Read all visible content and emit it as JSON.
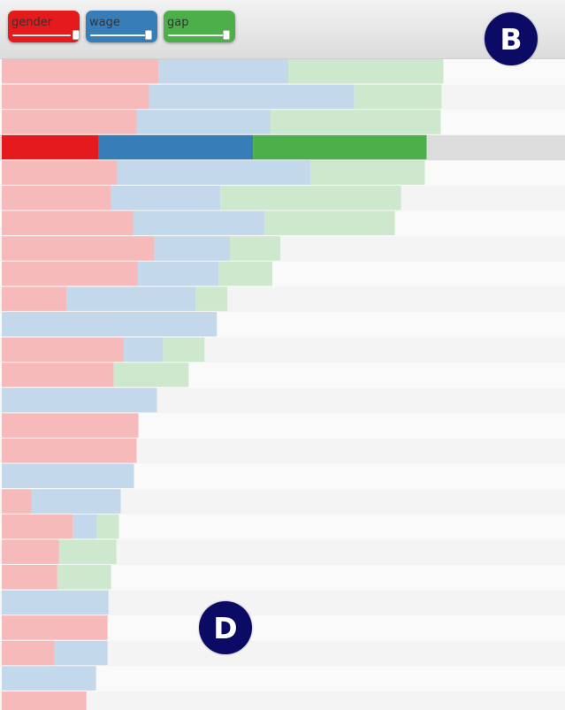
{
  "controls": [
    {
      "name": "gender",
      "color": "#e41a1c"
    },
    {
      "name": "wage",
      "color": "#377eb8"
    },
    {
      "name": "gap",
      "color": "#4daf4a"
    }
  ],
  "badges": [
    "B",
    "D"
  ],
  "chart_data": {
    "type": "bar",
    "stacked": true,
    "orientation": "horizontal",
    "title": "",
    "xlabel": "",
    "ylabel": "",
    "xlim": [
      0,
      639
    ],
    "highlighted_row": 3,
    "series": [
      {
        "name": "gender",
        "color": "#e41a1c",
        "faded_color": "#f7baba",
        "values": [
          178,
          167,
          153,
          110,
          131,
          124,
          149,
          173,
          154,
          74,
          0,
          138,
          127,
          0,
          155,
          153,
          0,
          34,
          81,
          65,
          63,
          0,
          120,
          60,
          0,
          96
        ]
      },
      {
        "name": "wage",
        "color": "#377eb8",
        "faded_color": "#c4d8ec",
        "values": [
          147,
          233,
          152,
          175,
          219,
          124,
          149,
          86,
          92,
          146,
          244,
          45,
          0,
          176,
          0,
          0,
          150,
          101,
          27,
          0,
          0,
          121,
          0,
          60,
          107,
          0
        ]
      },
      {
        "name": "gap",
        "color": "#4daf4a",
        "faded_color": "#cde8cc",
        "values": [
          176,
          99,
          193,
          197,
          130,
          205,
          148,
          57,
          61,
          36,
          0,
          47,
          85,
          0,
          0,
          0,
          0,
          0,
          25,
          65,
          61,
          0,
          0,
          0,
          0,
          0
        ]
      }
    ]
  }
}
